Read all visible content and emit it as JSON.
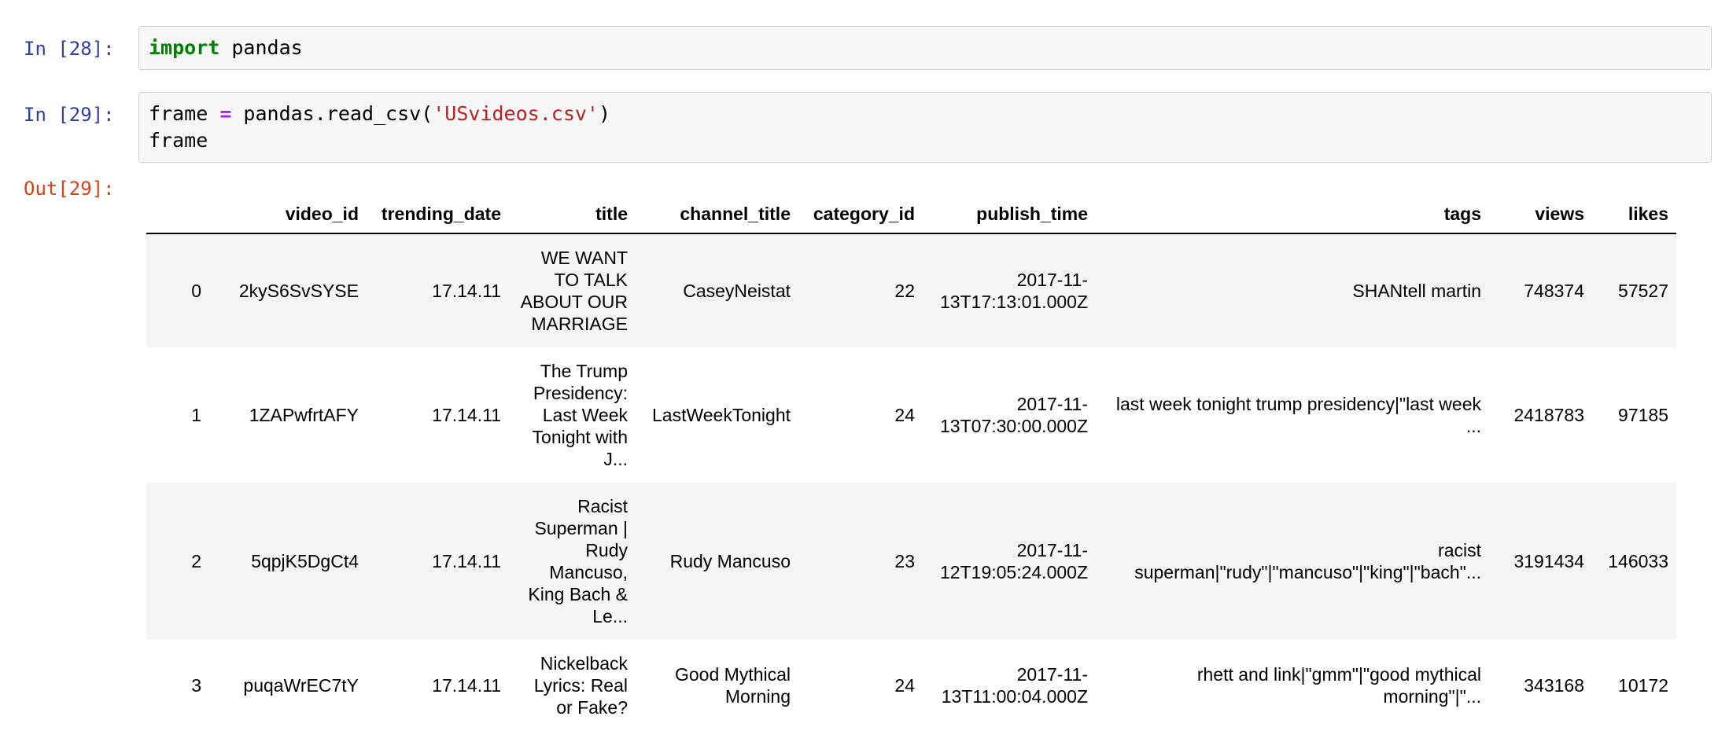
{
  "cells": [
    {
      "prompt": "In [28]:",
      "lines": [
        [
          {
            "text": "import",
            "kind": "kw"
          },
          {
            "text": " pandas",
            "kind": "plain"
          }
        ]
      ]
    },
    {
      "prompt": "In [29]:",
      "lines": [
        [
          {
            "text": "frame ",
            "kind": "plain"
          },
          {
            "text": "=",
            "kind": "op"
          },
          {
            "text": " pandas.read_csv(",
            "kind": "plain"
          },
          {
            "text": "'USvideos.csv'",
            "kind": "str"
          },
          {
            "text": ")",
            "kind": "plain"
          }
        ],
        [
          {
            "text": "frame",
            "kind": "plain"
          }
        ]
      ]
    }
  ],
  "output": {
    "prompt": "Out[29]:",
    "table": {
      "columns": [
        "video_id",
        "trending_date",
        "title",
        "channel_title",
        "category_id",
        "publish_time",
        "tags",
        "views",
        "likes"
      ],
      "rows": [
        [
          0,
          "2kyS6SvSYSE",
          "17.14.11",
          "WE WANT TO TALK ABOUT OUR MARRIAGE",
          "CaseyNeistat",
          22,
          "2017-11-13T17:13:01.000Z",
          "SHANtell martin",
          748374,
          57527
        ],
        [
          1,
          "1ZAPwfrtAFY",
          "17.14.11",
          "The Trump Presidency: Last Week Tonight with J...",
          "LastWeekTonight",
          24,
          "2017-11-13T07:30:00.000Z",
          "last week tonight trump presidency|\"last week ...",
          2418783,
          97185
        ],
        [
          2,
          "5qpjK5DgCt4",
          "17.14.11",
          "Racist Superman | Rudy Mancuso, King Bach & Le...",
          "Rudy Mancuso",
          23,
          "2017-11-12T19:05:24.000Z",
          "racist superman|\"rudy\"|\"mancuso\"|\"king\"|\"bach\"...",
          3191434,
          146033
        ],
        [
          3,
          "puqaWrEC7tY",
          "17.14.11",
          "Nickelback Lyrics: Real or Fake?",
          "Good Mythical Morning",
          24,
          "2017-11-13T11:00:04.000Z",
          "rhett and link|\"gmm\"|\"good mythical morning\"|\"...",
          343168,
          10172
        ]
      ]
    }
  }
}
